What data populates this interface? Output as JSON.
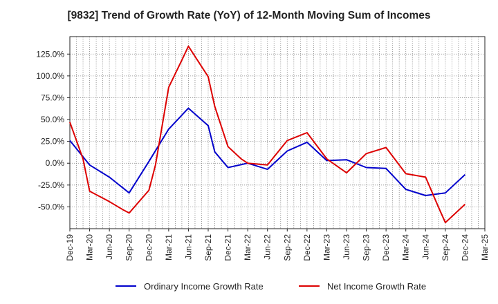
{
  "chart_data": {
    "type": "line",
    "title": "[9832]  Trend of Growth Rate (YoY) of 12-Month Moving Sum of Incomes",
    "xlabel": "",
    "ylabel": "",
    "x": [
      "Dec-19",
      "Mar-20",
      "Jun-20",
      "Sep-20",
      "Dec-20",
      "Mar-21",
      "Jun-21",
      "Sep-21",
      "Dec-21",
      "Mar-22",
      "Jun-22",
      "Sep-22",
      "Dec-22",
      "Mar-23",
      "Jun-23",
      "Sep-23",
      "Dec-23",
      "Mar-24",
      "Jun-24",
      "Sep-24",
      "Dec-24",
      "Mar-25"
    ],
    "xlim": [
      0,
      63
    ],
    "ylim": [
      -75,
      145
    ],
    "yticks": [
      -50,
      -25,
      0,
      25,
      50,
      75,
      100,
      125
    ],
    "ytick_labels": [
      "-50.0%",
      "-25.0%",
      "0.0%",
      "25.0%",
      "50.0%",
      "75.0%",
      "100.0%",
      "125.0%"
    ],
    "grid": true,
    "legend_position": "bottom",
    "series": [
      {
        "name": "Ordinary Income Growth Rate",
        "color": "#0000cc",
        "points": [
          [
            0,
            26
          ],
          [
            3,
            -2
          ],
          [
            6,
            -16
          ],
          [
            9,
            -34
          ],
          [
            12,
            2
          ],
          [
            15,
            39
          ],
          [
            18,
            63
          ],
          [
            21,
            43
          ],
          [
            22,
            13
          ],
          [
            24,
            -5
          ],
          [
            27,
            0
          ],
          [
            30,
            -7
          ],
          [
            33,
            14
          ],
          [
            36,
            24
          ],
          [
            39,
            3
          ],
          [
            42,
            4
          ],
          [
            45,
            -5
          ],
          [
            48,
            -6
          ],
          [
            51,
            -30
          ],
          [
            54,
            -37
          ],
          [
            57,
            -34
          ],
          [
            60,
            -13
          ]
        ]
      },
      {
        "name": "Net Income Growth Rate",
        "color": "#dd0000",
        "points": [
          [
            0,
            47
          ],
          [
            2,
            5
          ],
          [
            3,
            -32
          ],
          [
            6,
            -44
          ],
          [
            8,
            -53
          ],
          [
            9,
            -57
          ],
          [
            12,
            -31
          ],
          [
            13,
            -2
          ],
          [
            15,
            87
          ],
          [
            17,
            118
          ],
          [
            18,
            134
          ],
          [
            21,
            99
          ],
          [
            22,
            65
          ],
          [
            24,
            19
          ],
          [
            26,
            5
          ],
          [
            27,
            0
          ],
          [
            30,
            -2
          ],
          [
            33,
            26
          ],
          [
            36,
            35
          ],
          [
            39,
            5
          ],
          [
            42,
            -11
          ],
          [
            45,
            11
          ],
          [
            48,
            18
          ],
          [
            51,
            -12
          ],
          [
            54,
            -16
          ],
          [
            56,
            -51
          ],
          [
            57,
            -68
          ],
          [
            60,
            -47
          ]
        ]
      }
    ]
  }
}
